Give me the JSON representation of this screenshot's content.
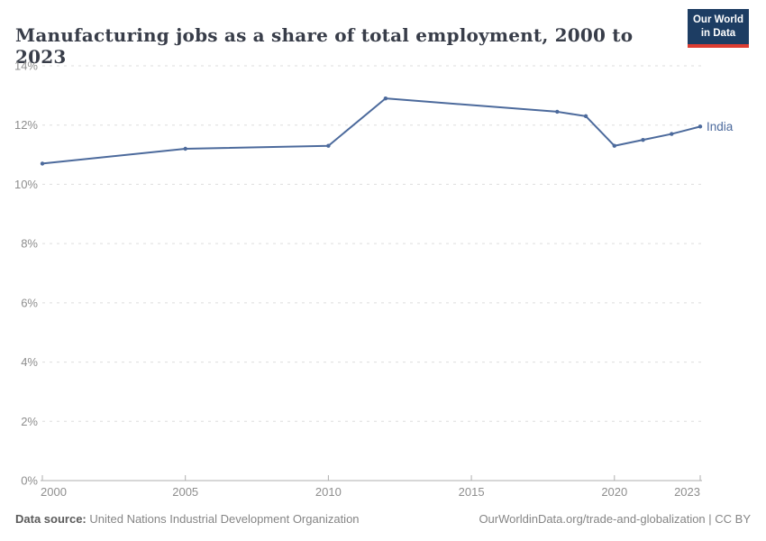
{
  "header": {
    "title": "Manufacturing jobs as a share of total employment, 2000 to 2023",
    "logo": {
      "line1": "Our World",
      "line2": "in Data"
    }
  },
  "chart_data": {
    "type": "line",
    "title": "Manufacturing jobs as a share of total employment, 2000 to 2023",
    "entity_label": "India",
    "x": [
      2000,
      2005,
      2010,
      2012,
      2018,
      2019,
      2020,
      2021,
      2022,
      2023
    ],
    "series": [
      {
        "name": "India",
        "values": [
          10.7,
          11.2,
          11.3,
          12.9,
          12.45,
          12.3,
          11.3,
          11.5,
          11.7,
          11.95
        ],
        "color": "#4c6a9c"
      }
    ],
    "xlim": [
      2000,
      2023
    ],
    "ylim": [
      0,
      14
    ],
    "xticks": {
      "values": [
        2000,
        2005,
        2010,
        2015,
        2020,
        2023
      ],
      "labels": [
        "2000",
        "2005",
        "2010",
        "2015",
        "2020",
        "2023"
      ]
    },
    "yticks": {
      "values": [
        0,
        2,
        4,
        6,
        8,
        10,
        12,
        14
      ],
      "labels": [
        "0%",
        "2%",
        "4%",
        "6%",
        "8%",
        "10%",
        "12%",
        "14%"
      ]
    },
    "xlabel": "",
    "ylabel": "",
    "grid": "horizontal-dashed",
    "legend_position": "end-of-line-label"
  },
  "footer": {
    "source_label": "Data source:",
    "source_value": "United Nations Industrial Development Organization",
    "rights": "OurWorldinData.org/trade-and-globalization | CC BY"
  },
  "colors": {
    "line": "#4c6a9c",
    "logo_bg": "#1d3d63",
    "logo_accent": "#dc3c31",
    "gridline": "#dddddd",
    "axis": "#afafaf",
    "tick_text": "#8e8e8e"
  }
}
